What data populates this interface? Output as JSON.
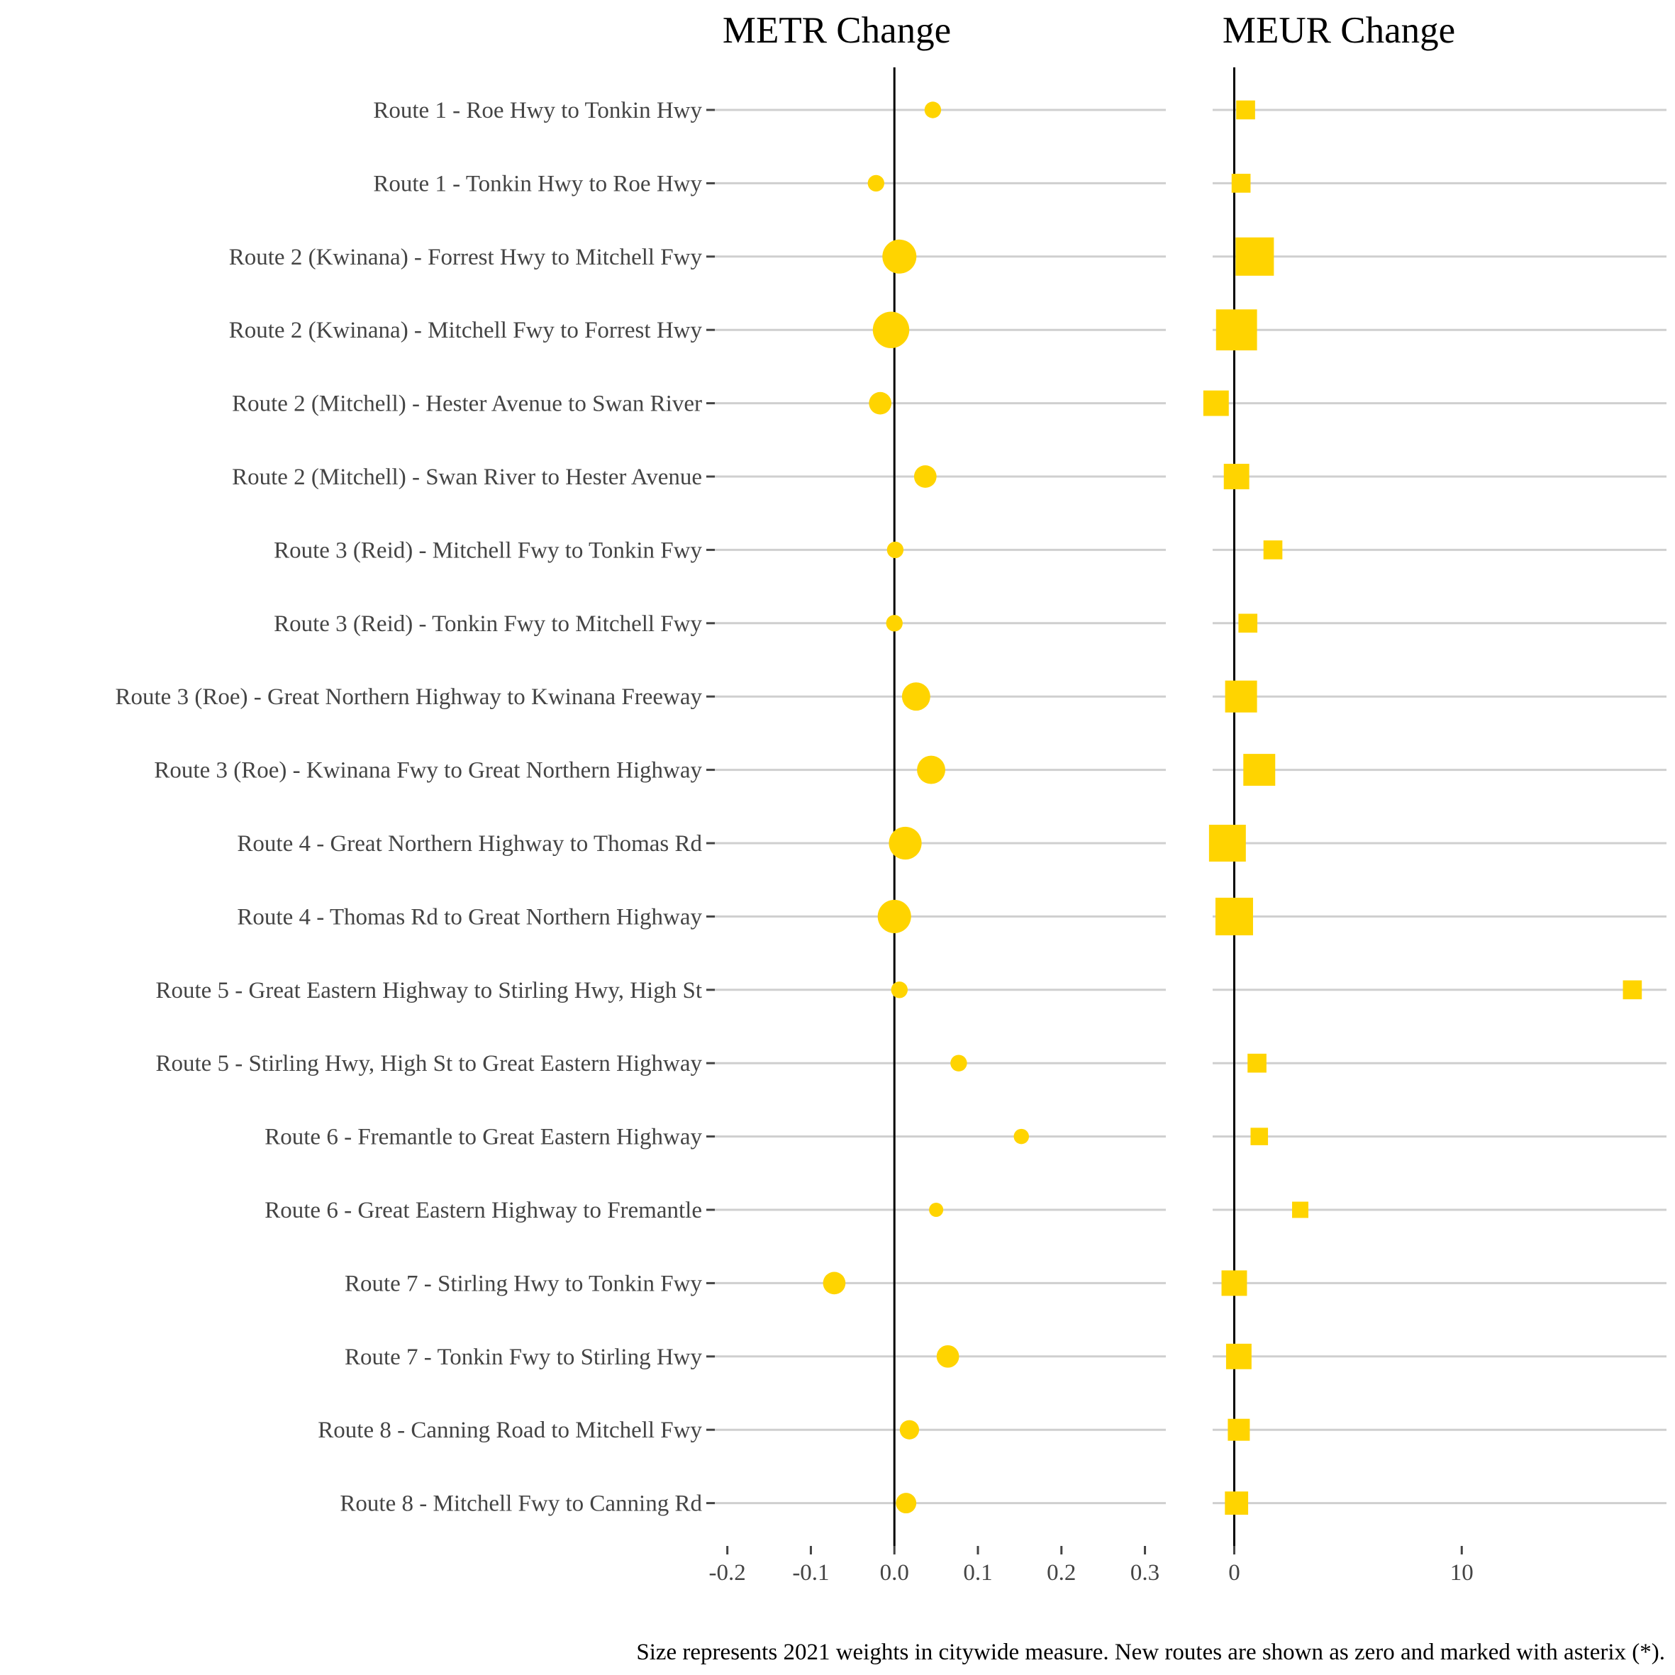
{
  "colors": {
    "marker": "#FFD400",
    "gridline": "#CFCFCF",
    "zero_line": "#000000",
    "tick_mark": "#444444",
    "background": "#FFFFFF"
  },
  "caption": "Size represents 2021 weights in citywide measure. New routes are shown as zero and marked with asterix (*).",
  "chart_data": [
    {
      "type": "scatter",
      "title": "METR Change",
      "marker": "circle",
      "xlim": [
        -0.215,
        0.325
      ],
      "x_ticks": [
        -0.2,
        -0.1,
        0.0,
        0.1,
        0.2,
        0.3
      ],
      "x_tick_labels": [
        "-0.2",
        "-0.1",
        "0.0",
        "0.1",
        "0.2",
        "0.3"
      ],
      "reference_line": 0,
      "grid": "horizontal",
      "categories": [
        "Route 1 - Roe Hwy to Tonkin Hwy",
        "Route 1 - Tonkin Hwy to Roe Hwy",
        "Route 2 (Kwinana) - Forrest Hwy to Mitchell Fwy",
        "Route 2 (Kwinana) - Mitchell Fwy to Forrest Hwy",
        "Route 2 (Mitchell) - Hester Avenue to Swan River",
        "Route 2 (Mitchell) - Swan River to Hester Avenue",
        "Route 3 (Reid) - Mitchell Fwy to Tonkin Fwy",
        "Route 3 (Reid) - Tonkin Fwy to Mitchell Fwy",
        "Route 3 (Roe) - Great Northern Highway to Kwinana Freeway",
        "Route 3 (Roe) - Kwinana Fwy to Great Northern Highway",
        "Route 4 - Great Northern Highway to Thomas Rd",
        "Route 4 - Thomas Rd to Great Northern Highway",
        "Route 5 - Great Eastern Highway to Stirling Hwy, High St",
        "Route 5 - Stirling Hwy, High St to Great Eastern Highway",
        "Route 6 - Fremantle to Great Eastern Highway",
        "Route 6 - Great Eastern Highway to Fremantle",
        "Route 7 - Stirling Hwy to Tonkin Fwy",
        "Route 7 - Tonkin Fwy to Stirling Hwy",
        "Route 8 - Canning Road to Mitchell Fwy",
        "Route 8 - Mitchell Fwy to Canning Rd"
      ],
      "values": [
        0.046,
        -0.022,
        0.006,
        -0.004,
        -0.017,
        0.037,
        0.001,
        0.0,
        0.026,
        0.044,
        0.013,
        0.0,
        0.006,
        0.077,
        0.152,
        0.05,
        -0.072,
        0.064,
        0.018,
        0.014
      ],
      "weights": [
        0.1,
        0.1,
        1.0,
        1.2,
        0.3,
        0.3,
        0.1,
        0.1,
        0.6,
        0.6,
        0.9,
        0.95,
        0.1,
        0.1,
        0.07,
        0.05,
        0.3,
        0.3,
        0.18,
        0.22
      ]
    },
    {
      "type": "scatter",
      "title": "MEUR Change",
      "marker": "square",
      "xlim": [
        -0.95,
        19.0
      ],
      "x_ticks": [
        0,
        10
      ],
      "x_tick_labels": [
        "0",
        "10"
      ],
      "reference_line": 0,
      "grid": "horizontal",
      "values": [
        0.5,
        0.3,
        0.9,
        0.1,
        -0.8,
        0.1,
        1.7,
        0.6,
        0.3,
        1.1,
        -0.3,
        0.0,
        17.5,
        1.0,
        1.1,
        2.9,
        0.0,
        0.2,
        0.2,
        0.1
      ],
      "weights": [
        0.1,
        0.1,
        1.0,
        1.2,
        0.3,
        0.3,
        0.1,
        0.1,
        0.6,
        0.6,
        0.9,
        0.95,
        0.1,
        0.1,
        0.07,
        0.05,
        0.3,
        0.3,
        0.18,
        0.22
      ]
    }
  ]
}
